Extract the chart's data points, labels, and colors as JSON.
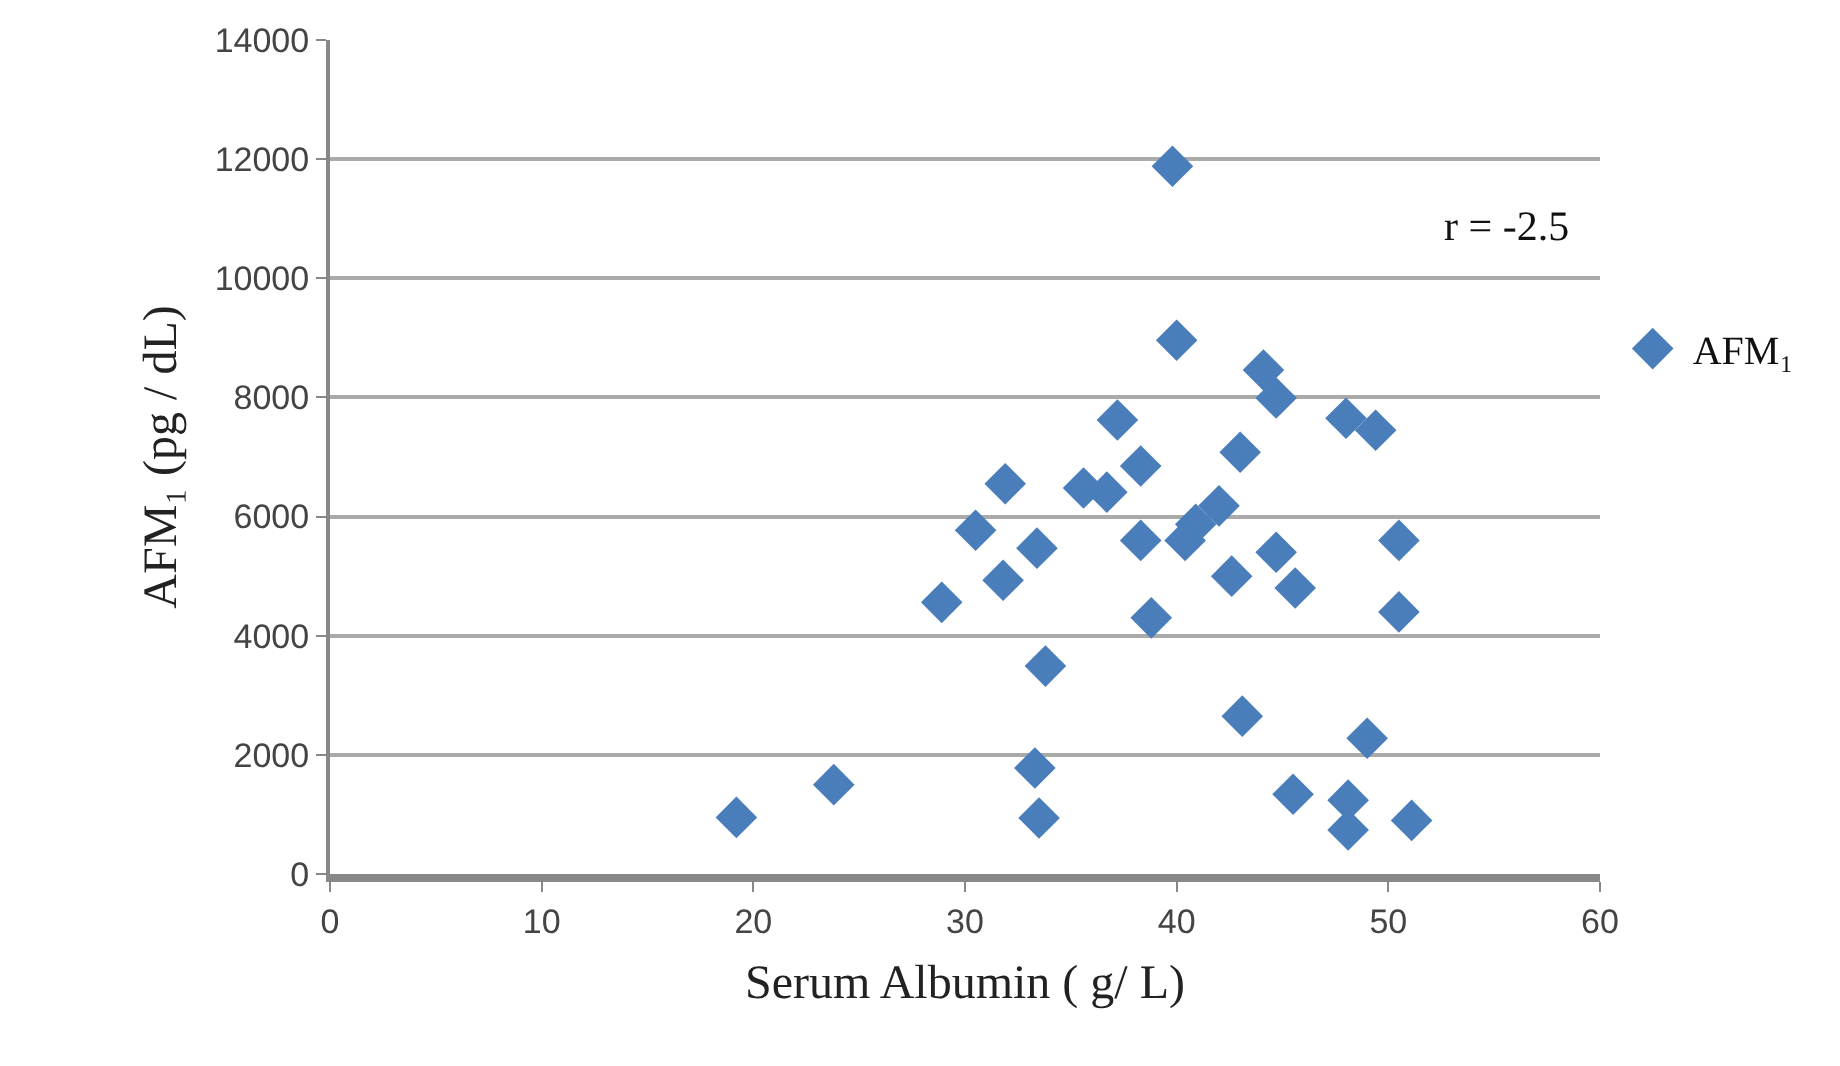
{
  "chart_data": {
    "type": "scatter",
    "xlabel": "Serum Albumin ( g/ L)",
    "ylabel": "AFM₁ (pg / dL)",
    "xlim": [
      0,
      60
    ],
    "xticks": [
      0,
      10,
      20,
      30,
      40,
      50,
      60
    ],
    "ylim": [
      0,
      14000
    ],
    "yticks": [
      0,
      2000,
      4000,
      6000,
      8000,
      10000,
      12000,
      14000
    ],
    "grid": "y",
    "legend": "right",
    "marker": "diamond",
    "annotations": [
      "r = -2.5"
    ],
    "series": [
      {
        "name": "AFM₁",
        "color": "#4a7ebb",
        "x": [
          19.2,
          23.8,
          28.9,
          30.5,
          31.8,
          31.9,
          33.3,
          33.8,
          33.4,
          33.5,
          35.6,
          36.7,
          37.2,
          38.3,
          38.3,
          38.8,
          39.8,
          40.0,
          40.4,
          40.9,
          42.0,
          42.6,
          43.0,
          43.1,
          44.1,
          44.7,
          44.7,
          45.6,
          45.5,
          48.0,
          48.1,
          48.1,
          49.0,
          49.4,
          50.5,
          50.5,
          51.1
        ],
        "values": [
          950,
          1500,
          4560,
          5770,
          4930,
          6550,
          1780,
          3490,
          5470,
          940,
          6480,
          6410,
          7620,
          6850,
          5600,
          4300,
          11880,
          8960,
          5600,
          5870,
          6180,
          5000,
          7080,
          2650,
          8460,
          7990,
          5400,
          4800,
          1340,
          7650,
          1240,
          740,
          2280,
          7450,
          5600,
          4400,
          900
        ]
      }
    ]
  }
}
